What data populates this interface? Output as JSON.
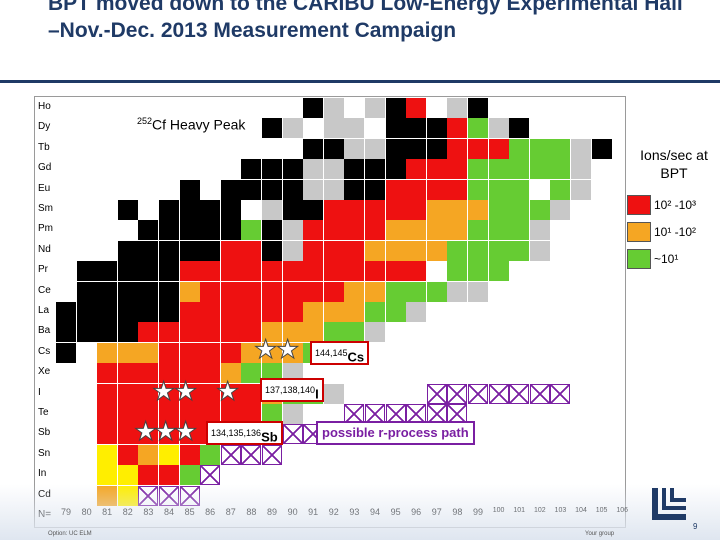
{
  "title": "BPT moved down to the CARIBU Low-Energy Experimental Hall –Nov.-Dec. 2013 Measurement Campaign",
  "chart": {
    "heavy_peak_sup": "252",
    "heavy_peak_text": "Cf Heavy Peak",
    "rows": [
      "Ho",
      "Dy",
      "Tb",
      "Gd",
      "Eu",
      "Sm",
      "Pm",
      "Nd",
      "Pr",
      "Ce",
      "La",
      "Ba",
      "Cs",
      "Xe",
      "I",
      "Te",
      "Sb",
      "Sn",
      "In",
      "Cd",
      "N="
    ],
    "columns": [
      "79",
      "80",
      "81",
      "82",
      "83",
      "84",
      "85",
      "86",
      "87",
      "88",
      "89",
      "90",
      "91",
      "92",
      "93",
      "94",
      "95",
      "96",
      "97",
      "98",
      "99",
      "100",
      "101",
      "102",
      "103",
      "104",
      "105",
      "106"
    ],
    "legend_title": "Ions/sec at BPT",
    "legend": [
      {
        "text": "10² -10³",
        "color": "#ee1111"
      },
      {
        "text": "10¹ -10²",
        "color": "#f5a623"
      },
      {
        "text": "~10¹",
        "color": "#66cc33"
      }
    ],
    "labels": [
      {
        "sup": "144,145",
        "main": "Cs"
      },
      {
        "sup": "137,138,140",
        "main": "I"
      },
      {
        "sup": "134,135,136",
        "main": "Sb"
      }
    ],
    "rprocess_label": "possible r-process path",
    "colors": {
      "black": "#000000",
      "gray": "#c8c8c8",
      "red": "#ee1111",
      "orange": "#f5a623",
      "green": "#66cc33",
      "yellow": "#ffee00",
      "purple": "#7a1fa2"
    }
  },
  "footer": {
    "left": "Option: UC ELM",
    "right": "Your group",
    "page": "9"
  }
}
